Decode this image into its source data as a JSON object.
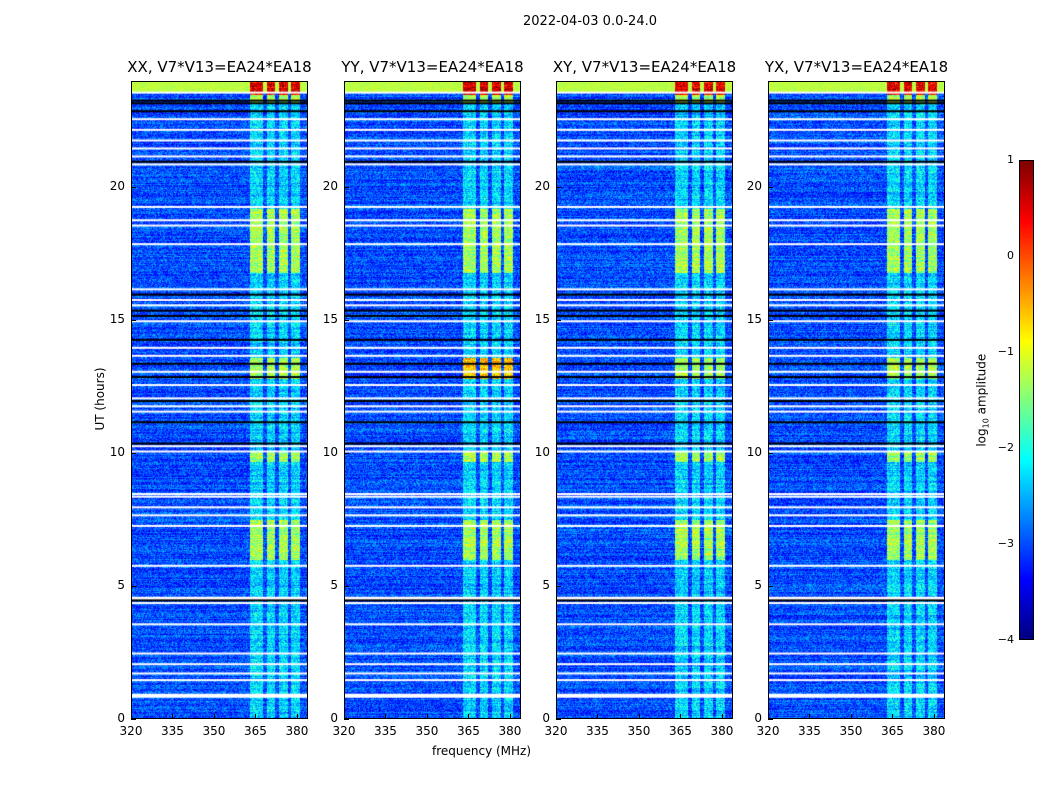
{
  "chart_data": {
    "type": "heatmap",
    "title": "2022-04-03 0.0-24.0",
    "xlabel": "frequency (MHz)",
    "ylabel": "UT (hours)",
    "xlim": [
      320,
      384
    ],
    "ylim": [
      0,
      24
    ],
    "xticks": [
      "320",
      "335",
      "350",
      "365",
      "380"
    ],
    "xtick_values": [
      320,
      335,
      350,
      365,
      380
    ],
    "yticks": [
      "0",
      "5",
      "10",
      "15",
      "20"
    ],
    "ytick_values": [
      0,
      5,
      10,
      15,
      20
    ],
    "panels": [
      {
        "title": "XX, V7*V13=EA24*EA18"
      },
      {
        "title": "YY, V7*V13=EA24*EA18"
      },
      {
        "title": "XY, V7*V13=EA24*EA18"
      },
      {
        "title": "YX, V7*V13=EA24*EA18"
      }
    ],
    "colorbar": {
      "label_prefix": "log",
      "label_sub": "10",
      "label_suffix": " amplitude",
      "range": [
        -4,
        1
      ],
      "ticks": [
        "1",
        "0",
        "−1",
        "−2",
        "−3",
        "−4"
      ],
      "tick_values": [
        1,
        0,
        -1,
        -2,
        -3,
        -4
      ],
      "colormap": "jet"
    },
    "background_level": -3.0,
    "rfi_channels_mhz": [
      [
        363,
        367.5
      ],
      [
        369,
        372
      ],
      [
        373.5,
        376.5
      ],
      [
        377.5,
        381
      ]
    ],
    "rfi_bright_hours": [
      [
        6,
        7.5
      ],
      [
        9.7,
        10.1
      ],
      [
        12.8,
        13.6
      ],
      [
        16.8,
        19.2
      ],
      [
        23.2,
        24
      ]
    ],
    "flagged_hours_white": [
      0.95,
      1.5,
      1.75,
      2.1,
      2.5,
      3.6,
      4.4,
      4.6,
      5.8,
      7.3,
      7.7,
      8.0,
      8.4,
      8.5,
      10.1,
      10.3,
      11.6,
      11.8,
      12.1,
      12.6,
      13.1,
      13.7,
      14.0,
      15.0,
      15.6,
      15.8,
      16.2,
      17.9,
      18.6,
      18.8,
      19.3,
      20.9,
      21.2,
      21.5,
      21.8,
      22.2,
      22.6,
      23.6
    ],
    "flagged_hours_black": [
      4.5,
      10.4,
      11.2,
      12.0,
      12.9,
      13.4,
      14.3,
      15.2,
      15.4,
      16.0,
      21.0,
      22.9,
      23.2,
      23.3
    ]
  }
}
